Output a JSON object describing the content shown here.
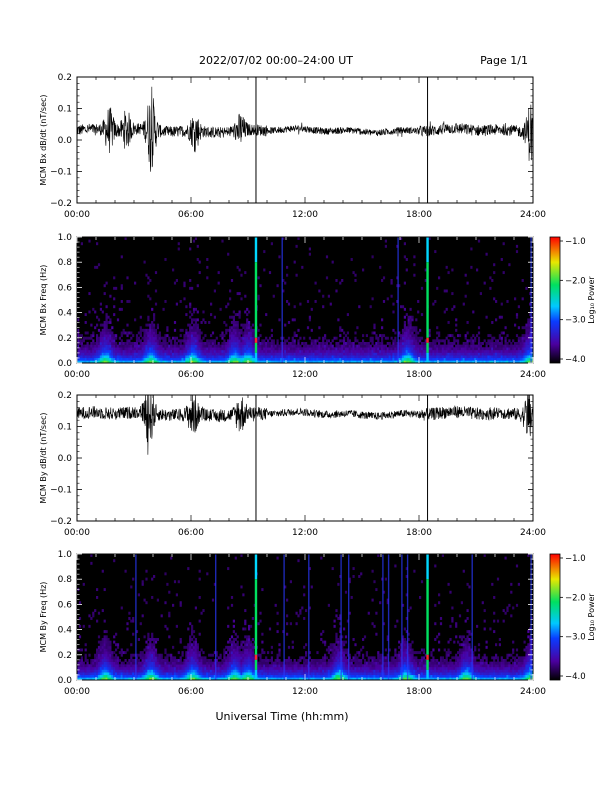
{
  "header": {
    "title": "2022/07/02  00:00–24:00 UT",
    "page": "Page 1/1"
  },
  "xaxis": {
    "label": "Universal Time (hh:mm)",
    "range": [
      0,
      24
    ],
    "ticks": [
      "00:00",
      "06:00",
      "12:00",
      "18:00",
      "24:00"
    ]
  },
  "chart_data": [
    {
      "type": "line",
      "ylabel": "MCM Bx dB/dt (nT/sec)",
      "xlim": [
        0,
        24
      ],
      "ylim": [
        -0.2,
        0.2
      ],
      "yticks": [
        "0.2",
        "0.1",
        "0.0",
        "−0.1",
        "−0.2"
      ],
      "baseline": 0.03,
      "noise_amplitude": 0.018,
      "spike_times_h": [
        9.42,
        18.45
      ],
      "spike_range": [
        -0.2,
        0.2
      ],
      "disturbances": [
        {
          "t": 1.7,
          "amp": 0.06
        },
        {
          "t": 2.6,
          "amp": 0.05
        },
        {
          "t": 3.9,
          "amp": 0.11
        },
        {
          "t": 6.2,
          "amp": 0.05
        },
        {
          "t": 8.6,
          "amp": 0.04
        },
        {
          "t": 23.9,
          "amp": 0.09
        }
      ]
    },
    {
      "type": "heatmap",
      "ylabel": "MCM Bx Freq (Hz)",
      "xlim": [
        0,
        24
      ],
      "ylim": [
        0.0,
        1.0
      ],
      "yticks": [
        "1.0",
        "0.8",
        "0.6",
        "0.4",
        "0.2",
        "0.0"
      ],
      "colorbar": {
        "label": "Log₁₀ Power",
        "ticks": [
          "−1.0",
          "−2.0",
          "−3.0",
          "−4.0"
        ],
        "range": [
          -4,
          -1
        ]
      },
      "vertical_lines_h": [
        9.42,
        18.45
      ],
      "weak_lines_h": [
        10.8,
        16.9,
        23.9
      ],
      "bursts_h": [
        1.5,
        3.9,
        6.1,
        8.3,
        9.0,
        17.4,
        23.9
      ]
    },
    {
      "type": "line",
      "ylabel": "MCM By dB/dt (nT/sec)",
      "xlim": [
        0,
        24
      ],
      "ylim": [
        -0.2,
        0.2
      ],
      "yticks": [
        "0.2",
        "0.1",
        "0.0",
        "−0.1",
        "−0.2"
      ],
      "baseline": 0.14,
      "noise_amplitude": 0.02,
      "spike_times_h": [
        9.42,
        18.45
      ],
      "spike_range": [
        -0.2,
        0.2
      ],
      "disturbances": [
        {
          "t": 3.8,
          "amp": 0.09
        },
        {
          "t": 6.1,
          "amp": 0.06
        },
        {
          "t": 8.6,
          "amp": 0.05
        },
        {
          "t": 23.8,
          "amp": 0.07
        }
      ]
    },
    {
      "type": "heatmap",
      "ylabel": "MCM By Freq (Hz)",
      "xlim": [
        0,
        24
      ],
      "ylim": [
        0.0,
        1.0
      ],
      "yticks": [
        "1.0",
        "0.8",
        "0.6",
        "0.4",
        "0.2",
        "0.0"
      ],
      "colorbar": {
        "label": "Log₁₀ Power",
        "ticks": [
          "−1.0",
          "−2.0",
          "−3.0",
          "−4.0"
        ],
        "range": [
          -4,
          -1
        ]
      },
      "vertical_lines_h": [
        9.42,
        18.45
      ],
      "weak_lines_h": [
        3.1,
        7.3,
        10.9,
        12.2,
        13.9,
        14.3,
        16.1,
        16.4,
        17.1,
        17.4,
        20.8,
        23.9
      ],
      "bursts_h": [
        1.5,
        3.9,
        6.1,
        8.3,
        9.0,
        13.8,
        17.3,
        20.5,
        23.9
      ]
    }
  ]
}
